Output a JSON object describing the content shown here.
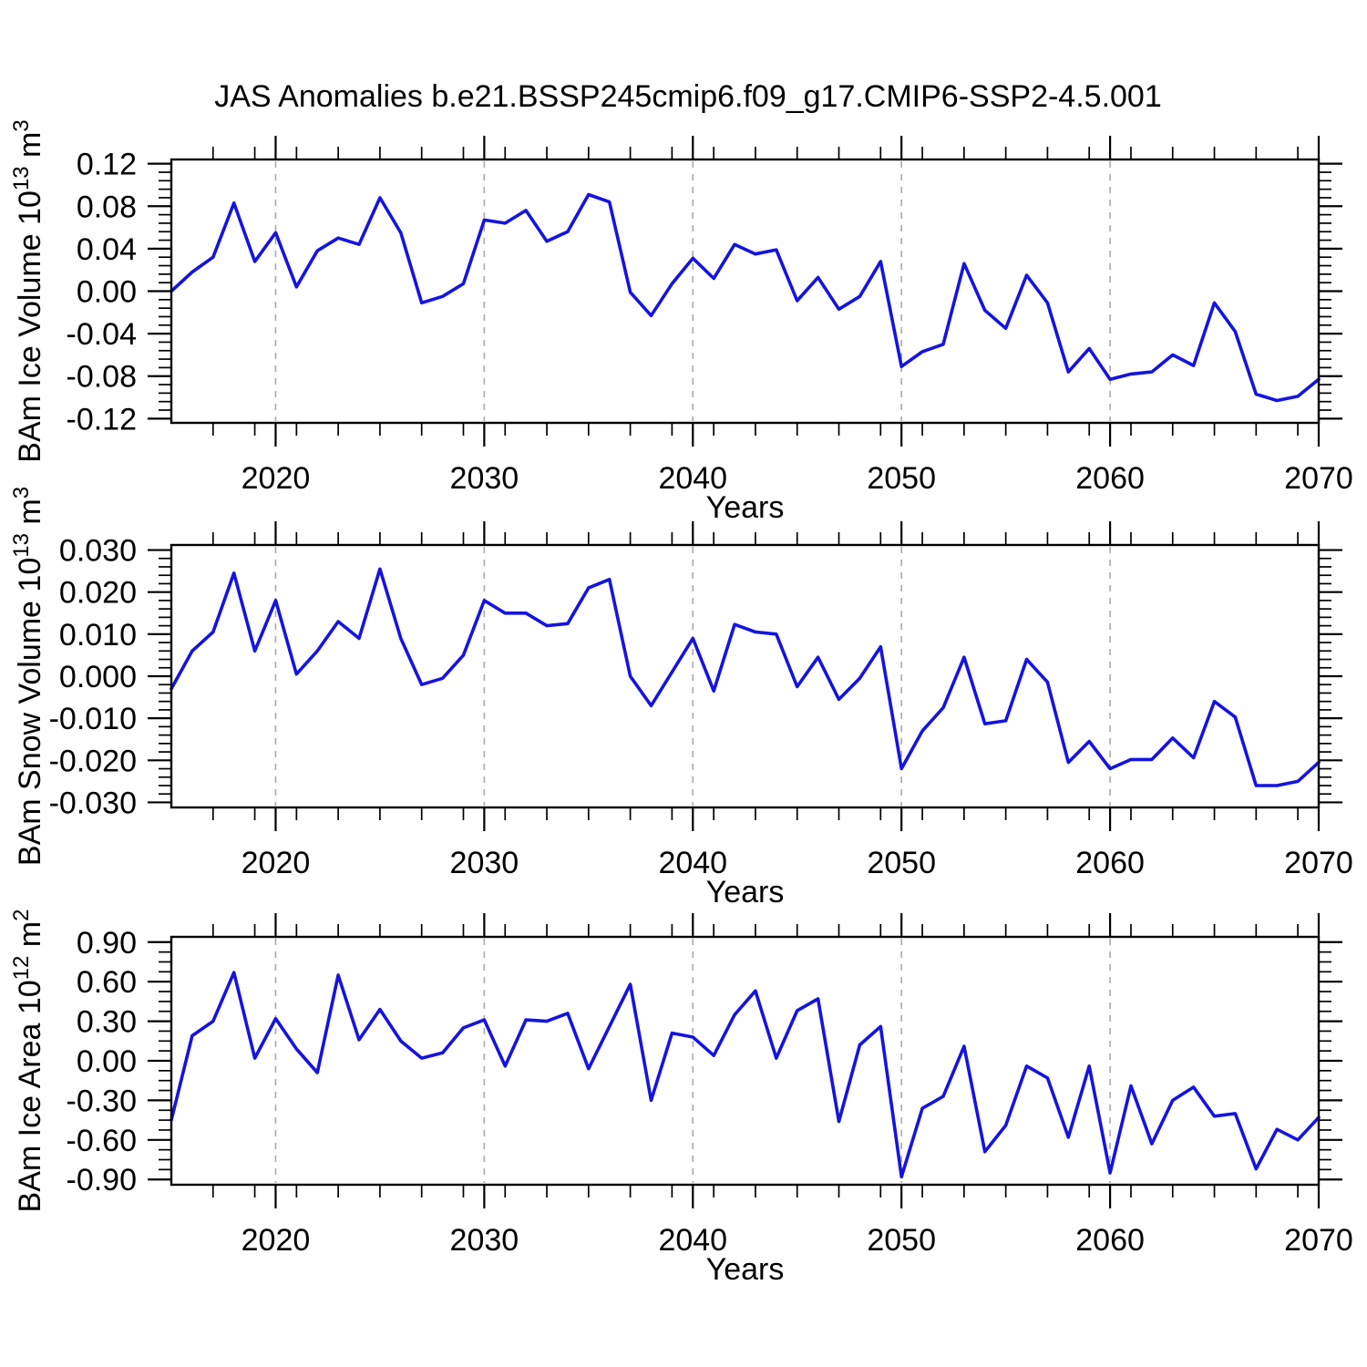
{
  "title": "JAS Anomalies b.e21.BSSP245cmip6.f09_g17.CMIP6-SSP2-4.5.001",
  "chart_data": {
    "type": "line",
    "title": "JAS Anomalies b.e21.BSSP245cmip6.f09_g17.CMIP6-SSP2-4.5.001",
    "x_label": "Years",
    "xlim": [
      2015,
      2070
    ],
    "x_ticks": [
      2020,
      2030,
      2040,
      2050,
      2060,
      2070
    ],
    "x_tick_labels": [
      "2020",
      "2030",
      "2040",
      "2050",
      "2060",
      "2070"
    ],
    "x_minor_step": 2,
    "dashed_gridlines_x": [
      2020,
      2030,
      2040,
      2050,
      2060
    ],
    "grid": "vertical-dashed-only",
    "legend": "none",
    "line_color": "#1414DF",
    "frame_color": "#000000",
    "dash_color": "#aaaaaa",
    "x": [
      2015,
      2016,
      2017,
      2018,
      2019,
      2020,
      2021,
      2022,
      2023,
      2024,
      2025,
      2026,
      2027,
      2028,
      2029,
      2030,
      2031,
      2032,
      2033,
      2034,
      2035,
      2036,
      2037,
      2038,
      2039,
      2040,
      2041,
      2042,
      2043,
      2044,
      2045,
      2046,
      2047,
      2048,
      2049,
      2050,
      2051,
      2052,
      2053,
      2054,
      2055,
      2056,
      2057,
      2058,
      2059,
      2060,
      2061,
      2062,
      2063,
      2064,
      2065,
      2066,
      2067,
      2068,
      2069,
      2070
    ],
    "panels": [
      {
        "name": "ice-volume",
        "ylabel_prefix": "BAm Ice Volume 10",
        "ylabel_exponent": "13",
        "ylabel_unit": " m",
        "ylabel_unit_exponent": "3",
        "ylim": [
          -0.124,
          0.124
        ],
        "ytick_max": 0.12,
        "ytick_step": 0.04,
        "y_minor_step": 0.008,
        "ytick_decimals": 2,
        "values": [
          0.0,
          0.018,
          0.032,
          0.083,
          0.028,
          0.055,
          0.004,
          0.038,
          0.05,
          0.044,
          0.088,
          0.055,
          -0.011,
          -0.005,
          0.007,
          0.067,
          0.064,
          0.076,
          0.047,
          0.056,
          0.091,
          0.084,
          -0.001,
          -0.023,
          0.007,
          0.031,
          0.012,
          0.044,
          0.035,
          0.039,
          -0.009,
          0.013,
          -0.017,
          -0.005,
          0.028,
          -0.071,
          -0.057,
          -0.05,
          0.026,
          -0.018,
          -0.035,
          0.015,
          -0.011,
          -0.076,
          -0.054,
          -0.083,
          -0.078,
          -0.076,
          -0.06,
          -0.07,
          -0.011,
          -0.038,
          -0.097,
          -0.103,
          -0.099,
          -0.083
        ]
      },
      {
        "name": "snow-volume",
        "ylabel_prefix": "BAm Snow Volume 10",
        "ylabel_exponent": "13",
        "ylabel_unit": " m",
        "ylabel_unit_exponent": "3",
        "ylim": [
          -0.0312,
          0.0312
        ],
        "ytick_max": 0.03,
        "ytick_step": 0.01,
        "y_minor_step": 0.002,
        "ytick_decimals": 3,
        "values": [
          -0.003,
          0.006,
          0.0105,
          0.0245,
          0.006,
          0.018,
          0.0005,
          0.006,
          0.013,
          0.009,
          0.0255,
          0.009,
          -0.002,
          -0.0005,
          0.005,
          0.018,
          0.015,
          0.015,
          0.012,
          0.0125,
          0.021,
          0.023,
          0.0,
          -0.007,
          0.001,
          0.009,
          -0.0035,
          0.0123,
          0.0105,
          0.01,
          -0.0025,
          0.0045,
          -0.0055,
          -0.0005,
          0.007,
          -0.022,
          -0.013,
          -0.0075,
          0.0045,
          -0.0113,
          -0.0106,
          0.004,
          -0.0014,
          -0.0205,
          -0.0155,
          -0.022,
          -0.0198,
          -0.0198,
          -0.0147,
          -0.0194,
          -0.006,
          -0.0097,
          -0.026,
          -0.026,
          -0.025,
          -0.0205
        ]
      },
      {
        "name": "ice-area",
        "ylabel_prefix": "BAm Ice Area 10",
        "ylabel_exponent": "12",
        "ylabel_unit": " m",
        "ylabel_unit_exponent": "2",
        "ylim": [
          -0.94,
          0.94
        ],
        "ytick_max": 0.9,
        "ytick_step": 0.3,
        "y_minor_step": 0.075,
        "ytick_decimals": 2,
        "values": [
          -0.45,
          0.19,
          0.3,
          0.67,
          0.02,
          0.32,
          0.09,
          -0.09,
          0.65,
          0.16,
          0.39,
          0.15,
          0.02,
          0.06,
          0.25,
          0.31,
          -0.04,
          0.31,
          0.3,
          0.36,
          -0.06,
          0.26,
          0.58,
          -0.3,
          0.21,
          0.18,
          0.04,
          0.35,
          0.53,
          0.02,
          0.38,
          0.47,
          -0.46,
          0.12,
          0.26,
          -0.88,
          -0.36,
          -0.27,
          0.11,
          -0.69,
          -0.49,
          -0.04,
          -0.13,
          -0.58,
          -0.04,
          -0.85,
          -0.19,
          -0.63,
          -0.3,
          -0.2,
          -0.42,
          -0.4,
          -0.82,
          -0.52,
          -0.6,
          -0.43
        ]
      }
    ]
  }
}
